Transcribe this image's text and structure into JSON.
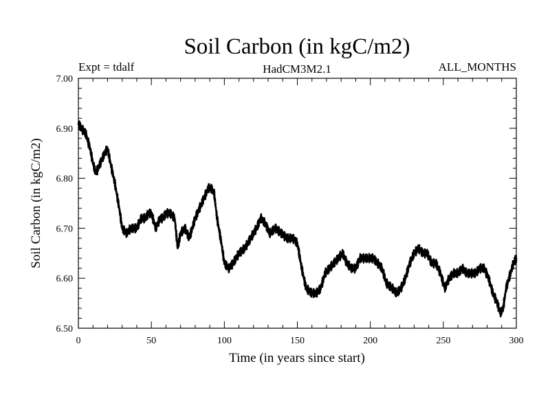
{
  "chart_data": {
    "type": "line",
    "title": "Soil Carbon (in kgC/m2)",
    "subtitle_left": "Expt = tdalf",
    "subtitle_center": "HadCM3M2.1",
    "subtitle_right": "ALL_MONTHS",
    "xlabel": "Time (in years since start)",
    "ylabel": "Soil Carbon (in kgC/m2)",
    "xlim": [
      0,
      300
    ],
    "ylim": [
      6.5,
      7.0
    ],
    "xticks": [
      "0",
      "50",
      "100",
      "150",
      "200",
      "250",
      "300"
    ],
    "yticks": [
      "6.50",
      "6.60",
      "6.70",
      "6.80",
      "6.90",
      "7.00"
    ],
    "grid": false,
    "colors": {
      "line": "#000000",
      "axis": "#000000"
    },
    "series": [
      {
        "x": [
          0,
          2,
          5,
          8,
          10,
          12,
          15,
          18,
          20,
          22,
          25,
          28,
          30,
          33,
          36,
          40,
          43,
          46,
          48,
          50,
          53,
          56,
          58,
          60,
          63,
          66,
          68,
          70,
          73,
          76,
          78,
          80,
          83,
          86,
          89,
          91,
          93,
          95,
          98,
          100,
          103,
          106,
          110,
          114,
          118,
          122,
          125,
          128,
          131,
          135,
          139,
          143,
          147,
          150,
          153,
          156,
          160,
          163,
          166,
          169,
          172,
          175,
          178,
          181,
          184,
          187,
          190,
          193,
          196,
          199,
          202,
          205,
          208,
          211,
          215,
          218,
          221,
          224,
          227,
          230,
          233,
          236,
          239,
          242,
          245,
          248,
          251,
          254,
          257,
          260,
          263,
          266,
          269,
          272,
          275,
          278,
          281,
          284,
          287,
          289,
          291,
          293,
          296,
          298,
          300
        ],
        "y": [
          6.91,
          6.9,
          6.89,
          6.86,
          6.83,
          6.81,
          6.83,
          6.85,
          6.86,
          6.83,
          6.79,
          6.74,
          6.7,
          6.69,
          6.7,
          6.7,
          6.72,
          6.72,
          6.73,
          6.73,
          6.7,
          6.72,
          6.72,
          6.73,
          6.73,
          6.72,
          6.66,
          6.69,
          6.7,
          6.68,
          6.7,
          6.72,
          6.74,
          6.76,
          6.78,
          6.78,
          6.77,
          6.72,
          6.67,
          6.63,
          6.62,
          6.63,
          6.65,
          6.66,
          6.68,
          6.7,
          6.72,
          6.71,
          6.69,
          6.7,
          6.69,
          6.68,
          6.68,
          6.67,
          6.62,
          6.58,
          6.57,
          6.57,
          6.58,
          6.61,
          6.62,
          6.63,
          6.64,
          6.65,
          6.63,
          6.62,
          6.62,
          6.64,
          6.64,
          6.64,
          6.64,
          6.63,
          6.62,
          6.59,
          6.58,
          6.57,
          6.58,
          6.6,
          6.63,
          6.65,
          6.66,
          6.65,
          6.65,
          6.63,
          6.63,
          6.61,
          6.58,
          6.6,
          6.61,
          6.61,
          6.62,
          6.61,
          6.61,
          6.61,
          6.62,
          6.62,
          6.6,
          6.57,
          6.55,
          6.53,
          6.54,
          6.58,
          6.61,
          6.63,
          6.64
        ]
      }
    ]
  }
}
